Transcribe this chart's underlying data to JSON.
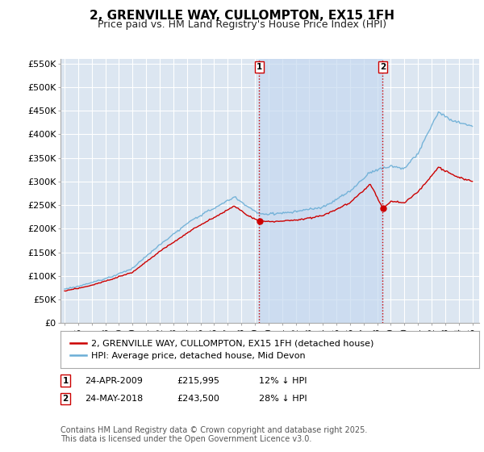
{
  "title": "2, GRENVILLE WAY, CULLOMPTON, EX15 1FH",
  "subtitle": "Price paid vs. HM Land Registry's House Price Index (HPI)",
  "ylim": [
    0,
    560000
  ],
  "yticks": [
    0,
    50000,
    100000,
    150000,
    200000,
    250000,
    300000,
    350000,
    400000,
    450000,
    500000,
    550000
  ],
  "ytick_labels": [
    "£0",
    "£50K",
    "£100K",
    "£150K",
    "£200K",
    "£250K",
    "£300K",
    "£350K",
    "£400K",
    "£450K",
    "£500K",
    "£550K"
  ],
  "hpi_color": "#6baed6",
  "price_color": "#cc0000",
  "vline_color": "#cc0000",
  "vline_style": ":",
  "marker1_x": 2009.3,
  "marker2_x": 2018.4,
  "shade_color": "#c6d9f0",
  "shade_alpha": 0.5,
  "legend_entries": [
    "2, GRENVILLE WAY, CULLOMPTON, EX15 1FH (detached house)",
    "HPI: Average price, detached house, Mid Devon"
  ],
  "footer": "Contains HM Land Registry data © Crown copyright and database right 2025.\nThis data is licensed under the Open Government Licence v3.0.",
  "background_color": "#ffffff",
  "plot_bg_color": "#dce6f1",
  "grid_color": "#ffffff",
  "title_fontsize": 11,
  "subtitle_fontsize": 9,
  "tick_fontsize": 8,
  "legend_fontsize": 8,
  "footer_fontsize": 7,
  "sale1_year": 2009.3,
  "sale1_price": 215995,
  "sale2_year": 2018.4,
  "sale2_price": 243500
}
